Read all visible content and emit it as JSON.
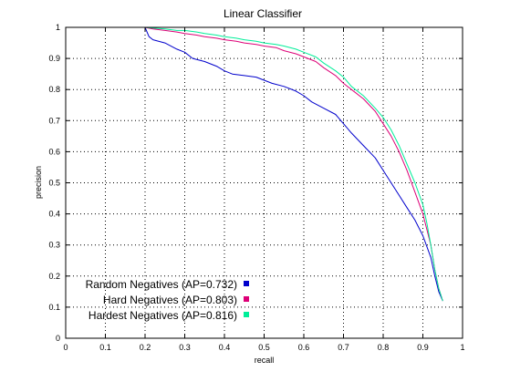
{
  "chart_data": {
    "type": "line",
    "title": "Linear Classifier",
    "xlabel": "recall",
    "ylabel": "precision",
    "xlim": [
      0,
      1
    ],
    "ylim": [
      0,
      1
    ],
    "grid": true,
    "grid_style": "dotted",
    "legend_placement": "bottom-left",
    "xticks": [
      0,
      0.1,
      0.2,
      0.3,
      0.4,
      0.5,
      0.6,
      0.7,
      0.8,
      0.9,
      1
    ],
    "xtick_labels": [
      "0",
      "0.1",
      "0.2",
      "0.3",
      "0.4",
      "0.5",
      "0.6",
      "0.7",
      "0.8",
      "0.9",
      "1"
    ],
    "yticks": [
      0,
      0.1,
      0.2,
      0.3,
      0.4,
      0.5,
      0.6,
      0.7,
      0.8,
      0.9,
      1
    ],
    "ytick_labels": [
      "0",
      "0.1",
      "0.2",
      "0.3",
      "0.4",
      "0.5",
      "0.6",
      "0.7",
      "0.8",
      "0.9",
      "1"
    ],
    "series": [
      {
        "name": "Random Negatives (AP=0.732)",
        "color": "#0000cc",
        "x": [
          0.2,
          0.21,
          0.22,
          0.25,
          0.28,
          0.3,
          0.32,
          0.35,
          0.38,
          0.4,
          0.42,
          0.45,
          0.48,
          0.5,
          0.52,
          0.55,
          0.58,
          0.6,
          0.62,
          0.65,
          0.68,
          0.7,
          0.72,
          0.75,
          0.78,
          0.8,
          0.82,
          0.84,
          0.86,
          0.88,
          0.9,
          0.92,
          0.93,
          0.94,
          0.95
        ],
        "y": [
          1.0,
          0.97,
          0.96,
          0.95,
          0.93,
          0.92,
          0.9,
          0.89,
          0.875,
          0.86,
          0.85,
          0.845,
          0.84,
          0.83,
          0.82,
          0.81,
          0.795,
          0.78,
          0.76,
          0.74,
          0.72,
          0.69,
          0.66,
          0.62,
          0.58,
          0.54,
          0.5,
          0.46,
          0.42,
          0.38,
          0.33,
          0.26,
          0.2,
          0.15,
          0.12
        ]
      },
      {
        "name": "Hard Negatives (AP=0.803)",
        "color": "#dd0077",
        "x": [
          0.2,
          0.22,
          0.25,
          0.28,
          0.3,
          0.33,
          0.35,
          0.38,
          0.4,
          0.43,
          0.45,
          0.48,
          0.5,
          0.53,
          0.55,
          0.58,
          0.6,
          0.63,
          0.65,
          0.68,
          0.7,
          0.72,
          0.75,
          0.78,
          0.8,
          0.82,
          0.84,
          0.86,
          0.88,
          0.9,
          0.91,
          0.92,
          0.93,
          0.94,
          0.95
        ],
        "y": [
          1.0,
          0.995,
          0.99,
          0.985,
          0.98,
          0.975,
          0.97,
          0.965,
          0.96,
          0.955,
          0.95,
          0.945,
          0.94,
          0.935,
          0.925,
          0.915,
          0.905,
          0.89,
          0.87,
          0.845,
          0.82,
          0.8,
          0.77,
          0.73,
          0.69,
          0.65,
          0.6,
          0.54,
          0.47,
          0.4,
          0.35,
          0.3,
          0.22,
          0.16,
          0.12
        ]
      },
      {
        "name": "Hardest Negatives (AP=0.816)",
        "color": "#00ee99",
        "x": [
          0.2,
          0.22,
          0.25,
          0.28,
          0.3,
          0.33,
          0.35,
          0.38,
          0.4,
          0.43,
          0.45,
          0.48,
          0.5,
          0.53,
          0.55,
          0.58,
          0.6,
          0.63,
          0.65,
          0.68,
          0.7,
          0.72,
          0.75,
          0.78,
          0.8,
          0.82,
          0.84,
          0.86,
          0.88,
          0.9,
          0.91,
          0.92,
          0.93,
          0.94,
          0.95
        ],
        "y": [
          1.0,
          0.998,
          0.995,
          0.99,
          0.99,
          0.985,
          0.98,
          0.975,
          0.97,
          0.965,
          0.96,
          0.955,
          0.95,
          0.945,
          0.94,
          0.93,
          0.92,
          0.905,
          0.885,
          0.86,
          0.84,
          0.81,
          0.78,
          0.74,
          0.71,
          0.67,
          0.62,
          0.56,
          0.5,
          0.43,
          0.37,
          0.3,
          0.22,
          0.16,
          0.12
        ]
      }
    ]
  }
}
